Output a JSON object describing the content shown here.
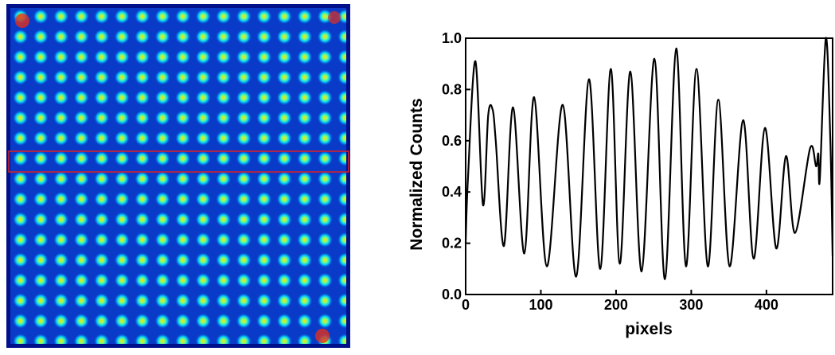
{
  "chart_data": {
    "type": "line",
    "xlabel": "pixels",
    "ylabel": "Normalized Counts",
    "x": [
      0,
      3,
      13,
      23,
      30,
      36,
      40,
      51,
      63,
      78,
      91,
      108,
      129,
      147,
      164,
      179,
      193,
      205,
      219,
      234,
      251,
      265,
      280,
      293,
      307,
      322,
      336,
      351,
      369,
      383,
      398,
      413,
      426,
      438,
      458,
      466,
      469,
      471,
      479,
      485,
      488
    ],
    "values": [
      0.2,
      0.45,
      0.91,
      0.35,
      0.7,
      0.72,
      0.6,
      0.19,
      0.73,
      0.16,
      0.77,
      0.11,
      0.74,
      0.07,
      0.84,
      0.1,
      0.88,
      0.12,
      0.87,
      0.09,
      0.92,
      0.06,
      0.96,
      0.11,
      0.88,
      0.11,
      0.76,
      0.11,
      0.68,
      0.14,
      0.65,
      0.18,
      0.54,
      0.24,
      0.57,
      0.5,
      0.55,
      0.45,
      1.0,
      0.6,
      0.15
    ],
    "color": "#000000",
    "xlim": [
      0,
      488
    ],
    "xticks": [
      0,
      100,
      200,
      300,
      400
    ],
    "ylim": [
      0,
      1
    ],
    "yticks": [
      {
        "value": 0,
        "label": "0.0"
      },
      0.2,
      0.4,
      0.6,
      0.8,
      {
        "value": 1,
        "label": "1.0"
      }
    ]
  }
}
